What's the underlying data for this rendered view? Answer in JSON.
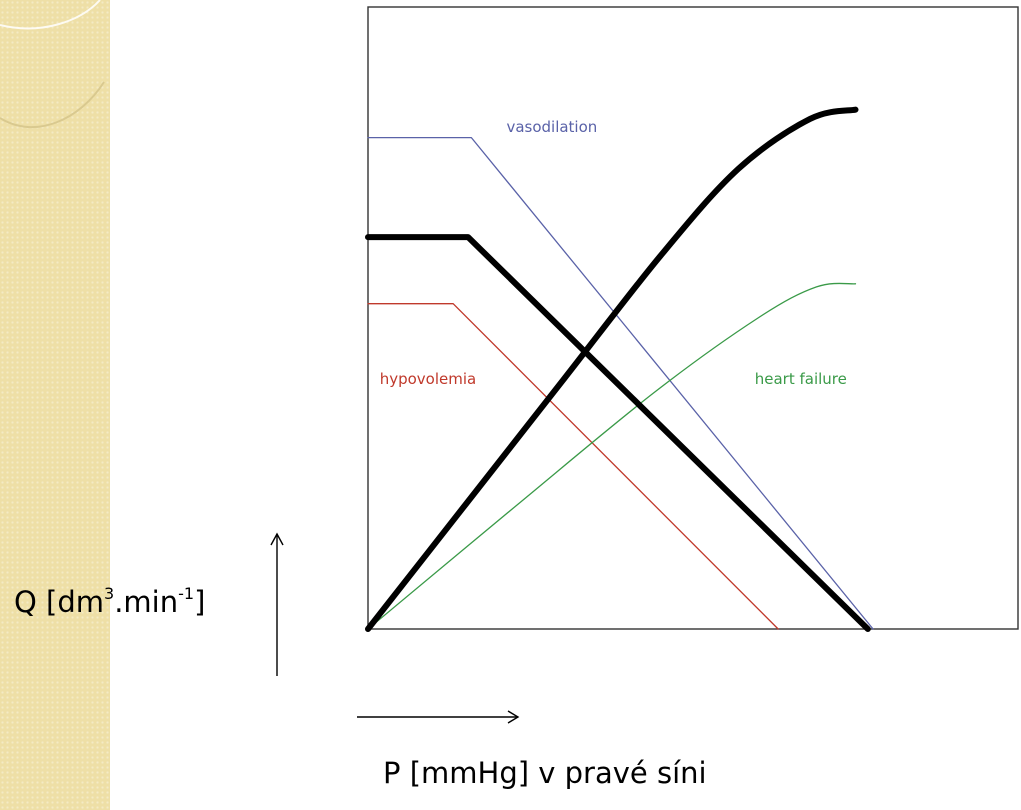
{
  "slide": {
    "y_axis_label_main": "Q [dm",
    "y_axis_label_sup1": "3",
    "y_axis_label_mid": ".min",
    "y_axis_label_sup2": "-1",
    "y_axis_label_end": "]",
    "x_axis_label": "P [mmHg] v pravé síni"
  },
  "colors": {
    "strip": "#eedfa6",
    "normal": "#000000",
    "vasodilation": "#5a62a8",
    "hypovolemia": "#c0392b",
    "heart_failure": "#3a9a48"
  },
  "chart_data": {
    "type": "line",
    "title": "",
    "xlabel": "P [mmHg] v pravé síni",
    "ylabel": "Q [dm3.min-1]",
    "xlim": [
      0,
      100
    ],
    "ylim": [
      0,
      100
    ],
    "grid": false,
    "legend": "none",
    "series": [
      {
        "key": "normal_venous_return",
        "color": "#000000",
        "weight": "bold",
        "points": [
          [
            0,
            63
          ],
          [
            15.4,
            63
          ],
          [
            76.9,
            0
          ]
        ]
      },
      {
        "key": "normal_cardiac_output",
        "color": "#000000",
        "weight": "bold",
        "points": [
          [
            0,
            0
          ],
          [
            15,
            20
          ],
          [
            30,
            40
          ],
          [
            45,
            60
          ],
          [
            57,
            74
          ],
          [
            68,
            82
          ],
          [
            75,
            83.5
          ]
        ]
      },
      {
        "name": "vasodilation",
        "color": "#5a62a8",
        "weight": "thin",
        "points": [
          [
            0,
            79
          ],
          [
            15.9,
            79
          ],
          [
            77.7,
            0
          ]
        ]
      },
      {
        "name": "hypovolemia",
        "color": "#c0392b",
        "weight": "thin",
        "points": [
          [
            0,
            52.3
          ],
          [
            13.1,
            52.3
          ],
          [
            63.1,
            0
          ]
        ]
      },
      {
        "name": "heart failure",
        "color": "#3a9a48",
        "weight": "thin",
        "points": [
          [
            0,
            0
          ],
          [
            23,
            20
          ],
          [
            44,
            38
          ],
          [
            60,
            50
          ],
          [
            69,
            55
          ],
          [
            75,
            55.5
          ]
        ]
      }
    ],
    "annotations": [
      {
        "text": "vasodilation",
        "color": "#5a62a8",
        "at": [
          21.3,
          79.9
        ]
      },
      {
        "text": "hypovolemia",
        "color": "#c0392b",
        "at": [
          1.8,
          39.4
        ]
      },
      {
        "text": "heart failure",
        "color": "#3a9a48",
        "at": [
          59.5,
          39.4
        ]
      }
    ]
  }
}
